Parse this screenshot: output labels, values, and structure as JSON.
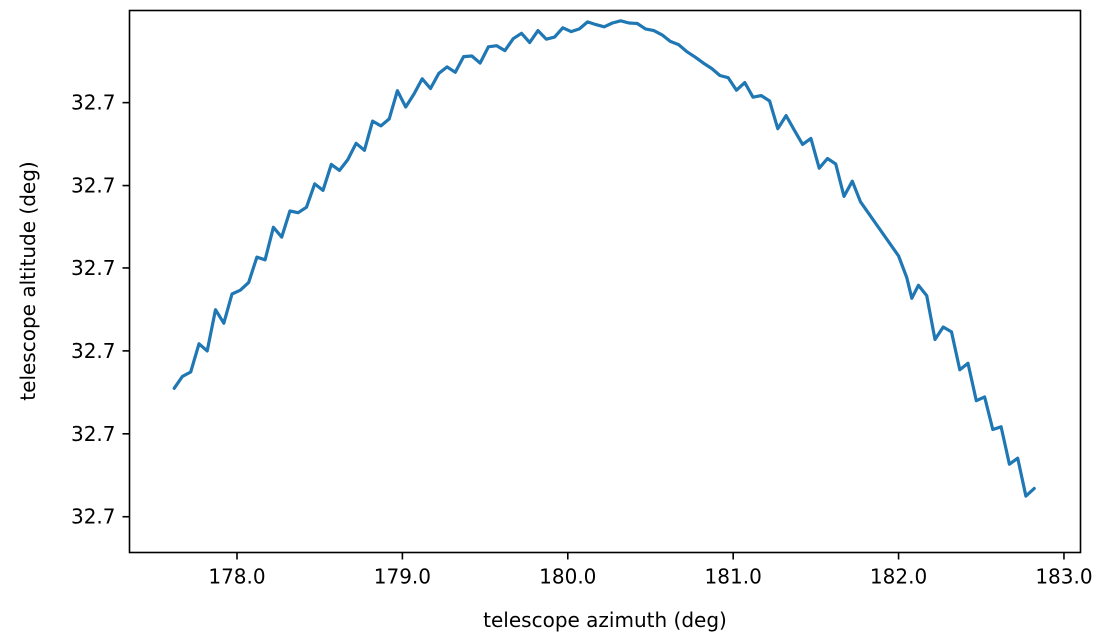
{
  "chart_data": {
    "type": "line",
    "title": "",
    "xlabel": "telescope azimuth (deg)",
    "ylabel": "telescope altitude (deg)",
    "xlim": [
      177.35,
      183.1
    ],
    "ylim": [
      0.0,
      1.0
    ],
    "x_ticks": [
      178.0,
      179.0,
      180.0,
      181.0,
      182.0,
      183.0
    ],
    "x_tick_labels": [
      "178.0",
      "179.0",
      "180.0",
      "181.0",
      "182.0",
      "183.0"
    ],
    "y_ticks": [
      0.83,
      0.677,
      0.525,
      0.372,
      0.219,
      0.066
    ],
    "y_tick_labels": [
      "32.7",
      "32.7",
      "32.7",
      "32.7",
      "32.7",
      "32.7"
    ],
    "grid": false,
    "legend": "none",
    "series": [
      {
        "color": "#1f77b4",
        "x": [
          177.62,
          177.67,
          177.72,
          177.77,
          177.82,
          177.87,
          177.92,
          177.97,
          178.02,
          178.07,
          178.12,
          178.17,
          178.22,
          178.27,
          178.32,
          178.37,
          178.42,
          178.47,
          178.52,
          178.57,
          178.62,
          178.67,
          178.72,
          178.77,
          178.82,
          178.87,
          178.92,
          178.97,
          179.02,
          179.07,
          179.12,
          179.17,
          179.22,
          179.27,
          179.32,
          179.37,
          179.42,
          179.47,
          179.52,
          179.57,
          179.62,
          179.67,
          179.72,
          179.77,
          179.82,
          179.87,
          179.92,
          179.97,
          180.02,
          180.07,
          180.12,
          180.17,
          180.22,
          180.27,
          180.32,
          180.37,
          180.42,
          180.47,
          180.52,
          180.57,
          180.62,
          180.67,
          180.72,
          180.77,
          180.82,
          180.87,
          180.92,
          180.97,
          181.02,
          181.07,
          181.12,
          181.17,
          181.22,
          181.27,
          181.32,
          181.37,
          181.42,
          181.47,
          181.52,
          181.57,
          181.62,
          181.67,
          181.72,
          181.77,
          182.0,
          182.05,
          182.08,
          182.12,
          182.17,
          182.22,
          182.27,
          182.32,
          182.37,
          182.42,
          182.47,
          182.52,
          182.57,
          182.62,
          182.67,
          182.72,
          182.77,
          182.82
        ],
        "y": [
          0.303,
          0.325,
          0.333,
          0.385,
          0.372,
          0.448,
          0.423,
          0.477,
          0.484,
          0.498,
          0.545,
          0.54,
          0.6,
          0.582,
          0.63,
          0.627,
          0.637,
          0.68,
          0.668,
          0.716,
          0.705,
          0.725,
          0.755,
          0.742,
          0.796,
          0.787,
          0.8,
          0.852,
          0.822,
          0.846,
          0.874,
          0.856,
          0.884,
          0.896,
          0.886,
          0.915,
          0.916,
          0.903,
          0.933,
          0.935,
          0.926,
          0.948,
          0.958,
          0.941,
          0.963,
          0.947,
          0.951,
          0.968,
          0.961,
          0.966,
          0.979,
          0.974,
          0.97,
          0.977,
          0.981,
          0.977,
          0.976,
          0.966,
          0.963,
          0.955,
          0.943,
          0.937,
          0.924,
          0.914,
          0.903,
          0.893,
          0.88,
          0.876,
          0.853,
          0.867,
          0.84,
          0.843,
          0.833,
          0.782,
          0.806,
          0.779,
          0.753,
          0.764,
          0.709,
          0.727,
          0.717,
          0.657,
          0.685,
          0.647,
          0.547,
          0.507,
          0.469,
          0.493,
          0.474,
          0.393,
          0.416,
          0.407,
          0.337,
          0.349,
          0.28,
          0.287,
          0.227,
          0.232,
          0.163,
          0.174,
          0.104,
          0.118
        ]
      }
    ]
  }
}
